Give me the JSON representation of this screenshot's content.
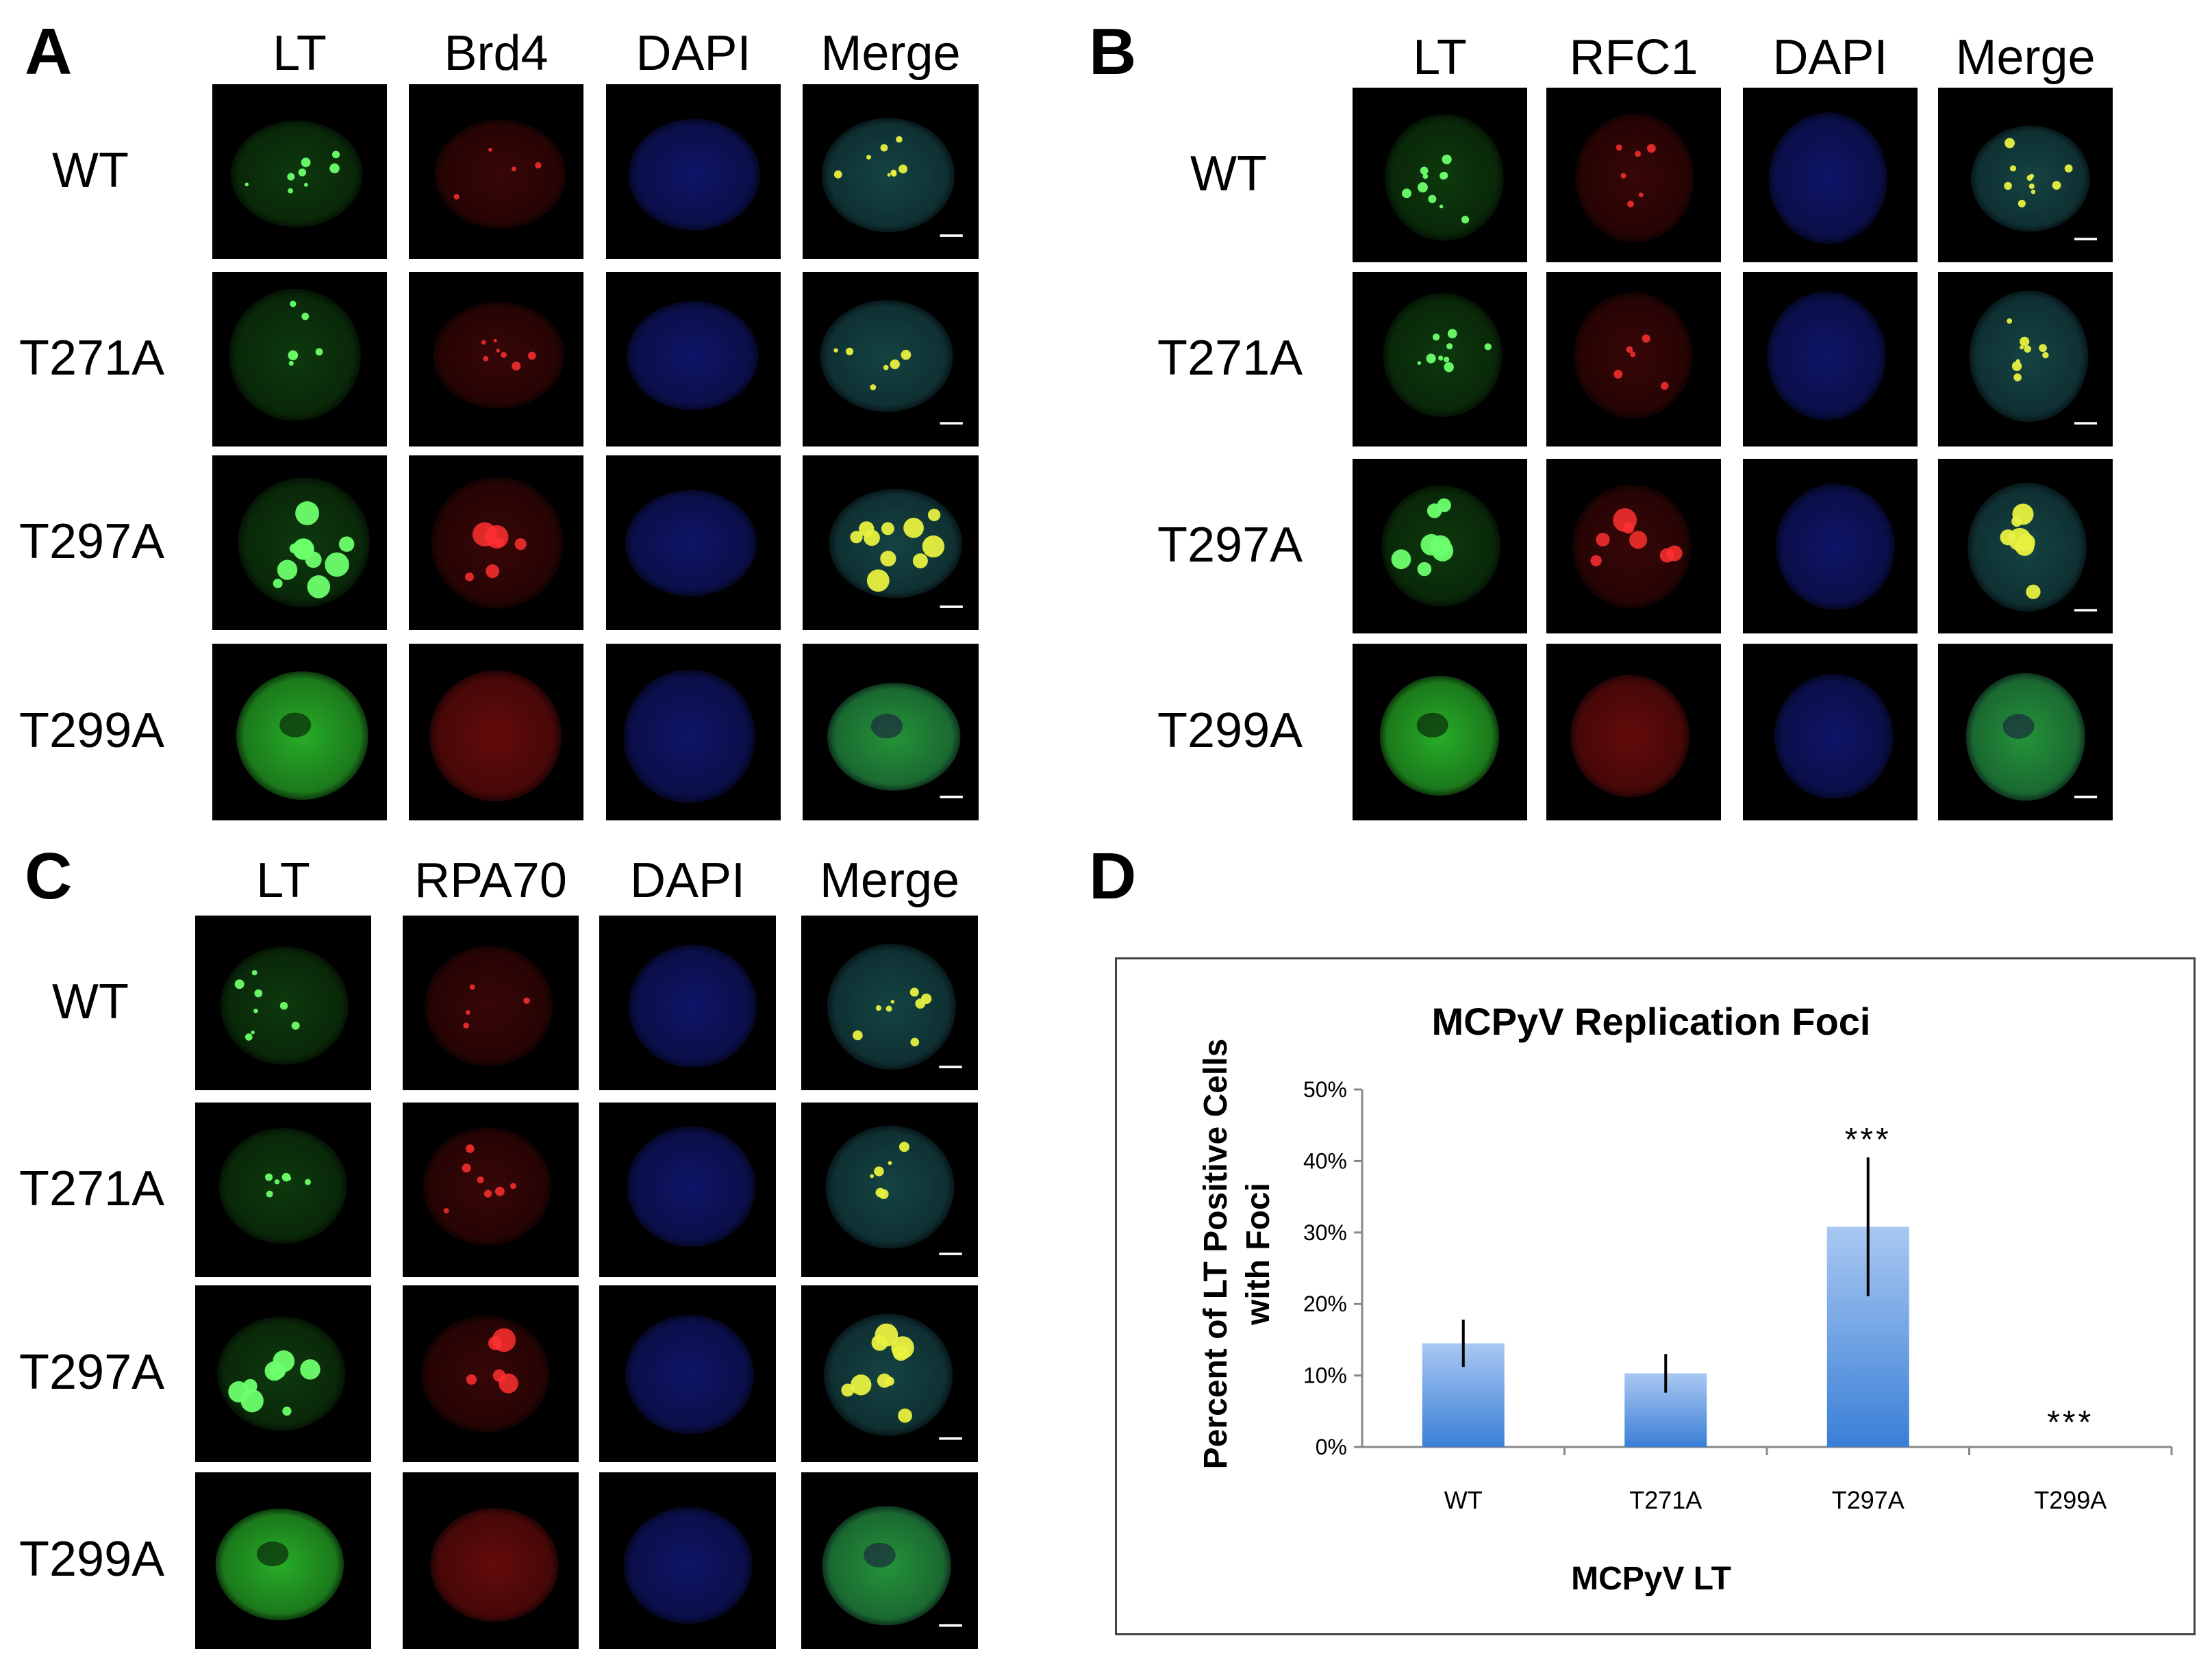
{
  "panels": {
    "A": {
      "letter": "A",
      "columns": [
        "LT",
        "Brd4",
        "DAPI",
        "Merge"
      ],
      "rows": [
        "WT",
        "T271A",
        "T297A",
        "T299A"
      ]
    },
    "B": {
      "letter": "B",
      "columns": [
        "LT",
        "RFC1",
        "DAPI",
        "Merge"
      ],
      "rows": [
        "WT",
        "T271A",
        "T297A",
        "T299A"
      ]
    },
    "C": {
      "letter": "C",
      "columns": [
        "LT",
        "RPA70",
        "DAPI",
        "Merge"
      ],
      "rows": [
        "WT",
        "T271A",
        "T297A",
        "T299A"
      ]
    },
    "D": {
      "letter": "D"
    }
  },
  "colors": {
    "lt": "#2ecc2e",
    "marker": "#e01818",
    "dapi": "#1e2ad0",
    "bar_top": "#a9c8f2",
    "bar_bottom": "#3a7fd6"
  },
  "chart_data": {
    "type": "bar",
    "title": "MCPyV Replication Foci",
    "xlabel": "MCPyV LT",
    "ylabel_lines": [
      "Percent of LT Positive Cells",
      "with Foci"
    ],
    "categories": [
      "WT",
      "T271A",
      "T297A",
      "T299A"
    ],
    "values": [
      14.5,
      10.3,
      30.8,
      0
    ],
    "errors": [
      3.3,
      2.7,
      9.7,
      0
    ],
    "yticks": [
      "0%",
      "10%",
      "20%",
      "30%",
      "40%",
      "50%"
    ],
    "ylim": [
      0,
      50
    ],
    "annotations": [
      "",
      "",
      "***",
      "***"
    ]
  }
}
